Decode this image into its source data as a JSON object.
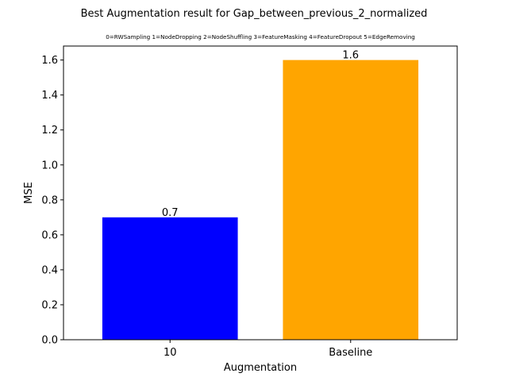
{
  "chart_data": {
    "type": "bar",
    "title": "Best Augmentation result for Gap_between_previous_2_normalized",
    "subtitle": "0=RWSampling 1=NodeDropping 2=NodeShuffling 3=FeatureMasking 4=FeatureDropout 5=EdgeRemoving",
    "xlabel": "Augmentation",
    "ylabel": "MSE",
    "categories": [
      "10",
      "Baseline"
    ],
    "values": [
      0.7,
      1.6
    ],
    "data_labels": [
      "0.7",
      "1.6"
    ],
    "bar_colors": [
      "#0000ff",
      "#ffa500"
    ],
    "ylim": [
      0,
      1.68
    ],
    "yticks": [
      0.0,
      0.2,
      0.4,
      0.6,
      0.8,
      1.0,
      1.2,
      1.4,
      1.6
    ],
    "ytick_labels": [
      "0.0",
      "0.2",
      "0.4",
      "0.6",
      "0.8",
      "1.0",
      "1.2",
      "1.4",
      "1.6"
    ],
    "grid": false,
    "legend": "none"
  }
}
